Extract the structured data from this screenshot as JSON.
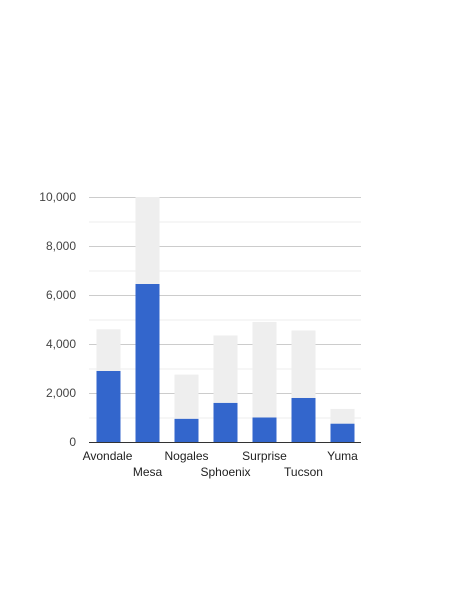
{
  "chart_data": {
    "type": "bar",
    "stacked": true,
    "categories": [
      "Avondale",
      "Mesa",
      "Nogales",
      "Sphoenix",
      "Surprise",
      "Tucson",
      "Yuma"
    ],
    "series": [
      {
        "values": [
          2900,
          6450,
          950,
          1600,
          1000,
          1800,
          750
        ]
      },
      {
        "values": [
          1700,
          3550,
          1800,
          2750,
          3900,
          2750,
          600
        ]
      }
    ],
    "ylim": [
      0,
      10000
    ],
    "y_ticks": [
      "0",
      "2,000",
      "4,000",
      "6,000",
      "8,000",
      "10,000"
    ],
    "grid": true,
    "legend": "none",
    "colors": {
      "series0": "#3366cc",
      "series1": "#eeeeee",
      "grid": "#cccccc",
      "minor_grid": "#eeeeee",
      "axis": "#333333"
    }
  }
}
